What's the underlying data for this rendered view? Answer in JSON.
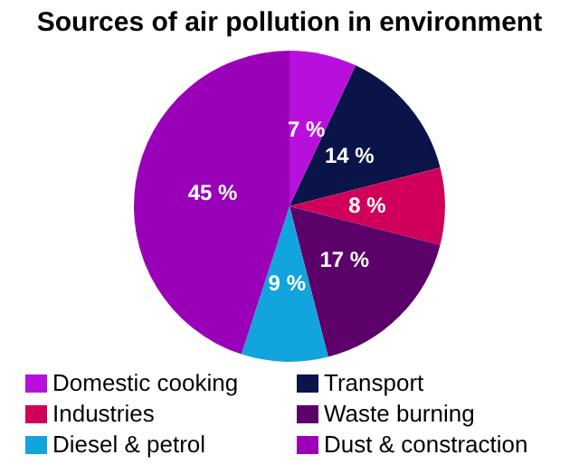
{
  "chart_data": {
    "type": "pie",
    "title": "Sources of air pollution in environment",
    "categories": [
      "Domestic cooking",
      "Transport",
      "Industries",
      "Waste burning",
      "Diesel & petrol",
      "Dust & constraction"
    ],
    "values": [
      7,
      14,
      8,
      17,
      9,
      45
    ],
    "colors": [
      "#b810dc",
      "#0a1448",
      "#d0005a",
      "#5c006a",
      "#12a4dc",
      "#9900b8"
    ],
    "value_labels": [
      "7 %",
      "14 %",
      "8 %",
      "17 %",
      "9 %",
      "45 %"
    ],
    "legend": "bottom"
  }
}
